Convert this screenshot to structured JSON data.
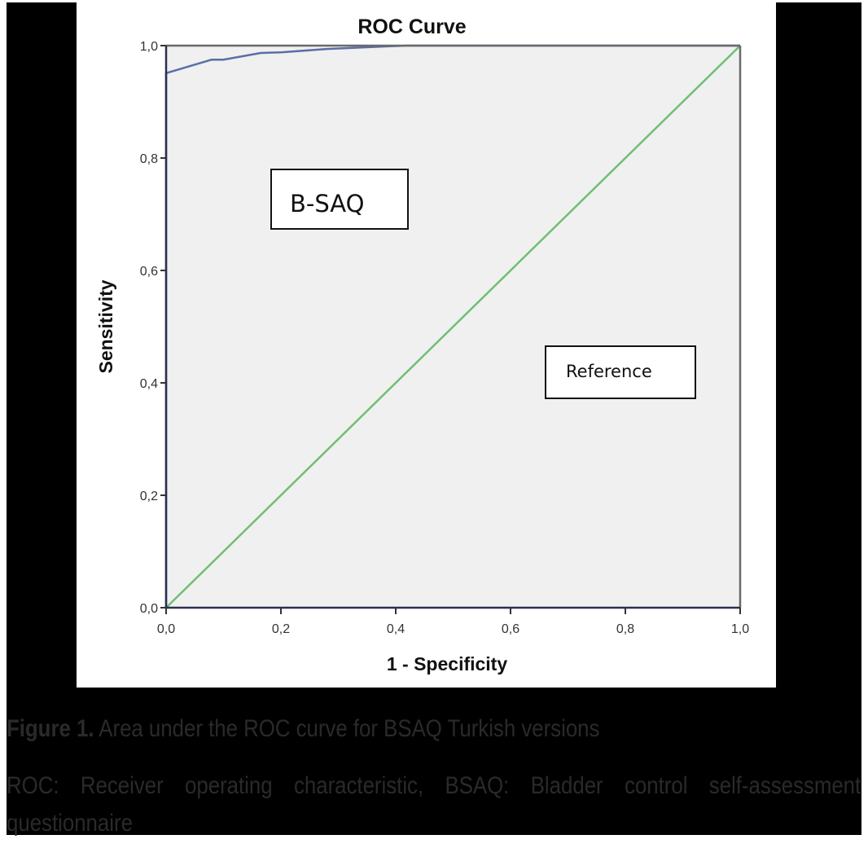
{
  "chart_data": {
    "type": "line",
    "title": "ROC Curve",
    "xlabel": "1 - Specificity",
    "ylabel": "Sensitivity",
    "xlim": [
      0.0,
      1.0
    ],
    "ylim": [
      0.0,
      1.0
    ],
    "x_ticks": [
      "0,0",
      "0,2",
      "0,4",
      "0,6",
      "0,8",
      "1,0"
    ],
    "y_ticks": [
      "0,0",
      "0,2",
      "0,4",
      "0,6",
      "0,8",
      "1,0"
    ],
    "grid": false,
    "series": [
      {
        "name": "B-SAQ",
        "color": "#5b6ea8",
        "x": [
          0.0,
          0.0,
          0.079,
          0.1,
          0.165,
          0.2,
          0.28,
          0.39,
          0.42,
          1.0
        ],
        "y": [
          0.0,
          0.951,
          0.975,
          0.975,
          0.987,
          0.988,
          0.994,
          0.999,
          1.0,
          1.0
        ]
      },
      {
        "name": "Reference",
        "color": "#6fbf73",
        "x": [
          0.0,
          1.0
        ],
        "y": [
          0.0,
          1.0
        ]
      }
    ],
    "annotations": [
      {
        "text": "B-SAQ",
        "x": 0.25,
        "y": 0.72
      },
      {
        "text": "Reference",
        "x": 0.79,
        "y": 0.42
      }
    ],
    "plot_background": "#f0f0f0"
  },
  "caption": {
    "label": "Figure 1.",
    "title": " Area under the ROC curve for BSAQ Turkish versions",
    "note": "ROC: Receiver operating characteristic, BSAQ: Bladder control self-assessment questionnaire"
  }
}
